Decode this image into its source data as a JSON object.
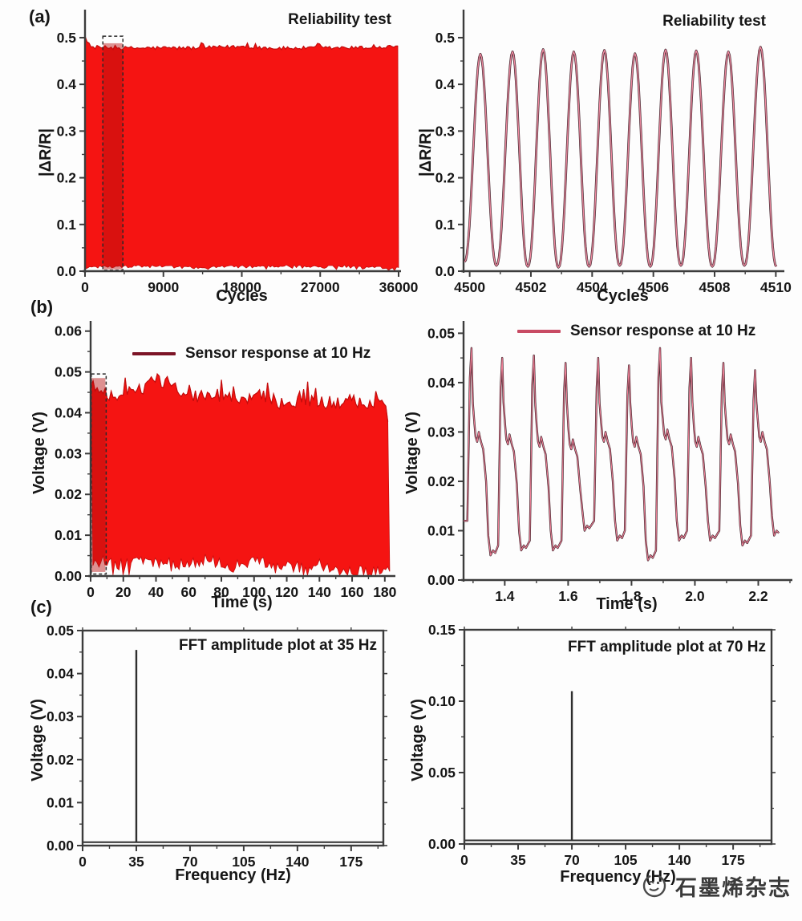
{
  "panels": {
    "a": {
      "label": "(a)"
    },
    "b": {
      "label": "(b)"
    },
    "c": {
      "label": "(c)"
    }
  },
  "colors": {
    "band_red": "#f51412",
    "band_edge_red": "#c40d0d",
    "stripe_red": "#b80d0d",
    "maroon_legend": "#7c1426",
    "crimson_legend": "#c84b64",
    "wave_dark": "#4a2a33",
    "wave_pink": "#ef8aa0",
    "pulse_dark": "#3c2128",
    "pulse_pink": "#ee7f96",
    "axis": "#3c3c3c",
    "spike": "#2f2f2f",
    "text": "#161616"
  },
  "watermark": {
    "logo": "graphene-magazine-logo",
    "text": "石墨烯杂志"
  },
  "chart_data": [
    {
      "id": "a-left",
      "type": "area",
      "title": "Reliability test",
      "xlabel": "Cycles",
      "ylabel": "|ΔR/R|",
      "xlim": [
        0,
        36000
      ],
      "ylim": [
        0,
        0.56
      ],
      "xticks": [
        0,
        9000,
        18000,
        27000,
        36000
      ],
      "xtick_labels": [
        "0",
        "9000",
        "18000",
        "27000",
        "36000"
      ],
      "minor_xticks": [
        4500,
        13500,
        22500,
        31500
      ],
      "yticks": [
        0,
        0.1,
        0.2,
        0.3,
        0.4,
        0.5
      ],
      "ytick_labels": [
        "0.0",
        "0.1",
        "0.2",
        "0.3",
        "0.4",
        "0.5"
      ],
      "minor_yticks": [
        0.05,
        0.15,
        0.25,
        0.35,
        0.45
      ],
      "band": {
        "x_start": 0,
        "x_end": 36000,
        "envelope_top": [
          [
            0,
            0.5
          ],
          [
            250,
            0.49
          ],
          [
            700,
            0.48
          ],
          [
            4000,
            0.4775
          ],
          [
            9000,
            0.478
          ],
          [
            13000,
            0.4778
          ],
          [
            18000,
            0.481
          ],
          [
            22000,
            0.4772
          ],
          [
            27000,
            0.4778
          ],
          [
            31000,
            0.4782
          ],
          [
            34000,
            0.479
          ],
          [
            36000,
            0.483
          ]
        ],
        "envelope_bottom": [
          [
            0,
            0.003
          ],
          [
            500,
            0.009
          ],
          [
            5000,
            0.01
          ],
          [
            9000,
            0.0105
          ],
          [
            12000,
            0.008
          ],
          [
            18000,
            0.0095
          ],
          [
            24000,
            0.0105
          ],
          [
            27000,
            0.009
          ],
          [
            30000,
            0.0105
          ],
          [
            33000,
            0.008
          ],
          [
            36000,
            0.006
          ]
        ],
        "top_noise": 0.004,
        "bottom_noise": 0.003
      },
      "highlight_stripe": {
        "x0": 2100,
        "x1": 4300,
        "y0": 0.004,
        "y1": 0.488
      },
      "zoom_box": {
        "x0": 2050,
        "x1": 4350,
        "y0": 0.002,
        "y1": 0.503
      },
      "grid": false,
      "legend": null
    },
    {
      "id": "a-right",
      "type": "line",
      "title": "Reliability test",
      "xlabel": "Cycles",
      "ylabel": "|ΔR/R|",
      "xlim": [
        4499.8,
        4510.2
      ],
      "ylim": [
        0,
        0.56
      ],
      "xticks": [
        4500,
        4502,
        4504,
        4506,
        4508,
        4510
      ],
      "xtick_labels": [
        "4500",
        "4502",
        "4504",
        "4506",
        "4508",
        "4510"
      ],
      "minor_xticks": [
        4501,
        4503,
        4505,
        4507,
        4509
      ],
      "yticks": [
        0,
        0.1,
        0.2,
        0.3,
        0.4,
        0.5
      ],
      "ytick_labels": [
        "0.0",
        "0.1",
        "0.2",
        "0.3",
        "0.4",
        "0.5"
      ],
      "minor_yticks": [
        0.05,
        0.15,
        0.25,
        0.35,
        0.45
      ],
      "wave": {
        "period_cycles": 1.0,
        "peaks": [
          {
            "x": 4500.35,
            "y": 0.465
          },
          {
            "x": 4501.4,
            "y": 0.47
          },
          {
            "x": 4502.4,
            "y": 0.475
          },
          {
            "x": 4503.4,
            "y": 0.47
          },
          {
            "x": 4504.4,
            "y": 0.473
          },
          {
            "x": 4505.4,
            "y": 0.466
          },
          {
            "x": 4506.4,
            "y": 0.474
          },
          {
            "x": 4507.4,
            "y": 0.472
          },
          {
            "x": 4508.45,
            "y": 0.47
          },
          {
            "x": 4509.5,
            "y": 0.48
          }
        ],
        "troughs": [
          0.02,
          0.012,
          0.01,
          0.008,
          0.01,
          0.012,
          0.01,
          0.012,
          0.01,
          0.012,
          0.01
        ]
      },
      "grid": false,
      "legend": null
    },
    {
      "id": "b-left",
      "type": "area",
      "title": null,
      "legend": "Sensor response at 10 Hz",
      "xlabel": "Time (s)",
      "ylabel": "Voltage (V)",
      "xlim": [
        0,
        185
      ],
      "ylim": [
        0,
        0.0625
      ],
      "xticks": [
        0,
        20,
        40,
        60,
        80,
        100,
        120,
        140,
        160,
        180
      ],
      "xtick_labels": [
        "0",
        "20",
        "40",
        "60",
        "80",
        "100",
        "120",
        "140",
        "160",
        "180"
      ],
      "minor_xticks": [
        10,
        30,
        50,
        70,
        90,
        110,
        130,
        150,
        170
      ],
      "yticks": [
        0,
        0.01,
        0.02,
        0.03,
        0.04,
        0.05,
        0.06
      ],
      "ytick_labels": [
        "0.00",
        "0.01",
        "0.02",
        "0.03",
        "0.04",
        "0.05",
        "0.06"
      ],
      "minor_yticks": [
        0.005,
        0.015,
        0.025,
        0.035,
        0.045,
        0.055
      ],
      "band": {
        "x_start": 0.3,
        "x_end": 183,
        "envelope_top": [
          [
            0.3,
            0.048
          ],
          [
            3,
            0.0465
          ],
          [
            8,
            0.0445
          ],
          [
            15,
            0.0445
          ],
          [
            25,
            0.045
          ],
          [
            33,
            0.0455
          ],
          [
            38,
            0.0495
          ],
          [
            42,
            0.0475
          ],
          [
            48,
            0.048
          ],
          [
            55,
            0.046
          ],
          [
            60,
            0.044
          ],
          [
            70,
            0.044
          ],
          [
            80,
            0.0445
          ],
          [
            90,
            0.043
          ],
          [
            100,
            0.0445
          ],
          [
            110,
            0.043
          ],
          [
            120,
            0.0425
          ],
          [
            130,
            0.0425
          ],
          [
            140,
            0.043
          ],
          [
            150,
            0.042
          ],
          [
            160,
            0.043
          ],
          [
            170,
            0.0415
          ],
          [
            178,
            0.042
          ],
          [
            183,
            0.038
          ]
        ],
        "envelope_bottom": [
          [
            0.3,
            0.004
          ],
          [
            10,
            0.0035
          ],
          [
            20,
            0.0028
          ],
          [
            30,
            0.004
          ],
          [
            40,
            0.0035
          ],
          [
            50,
            0.003
          ],
          [
            60,
            0.0028
          ],
          [
            70,
            0.004
          ],
          [
            80,
            0.003
          ],
          [
            90,
            0.0028
          ],
          [
            100,
            0.0038
          ],
          [
            110,
            0.0028
          ],
          [
            120,
            0.003
          ],
          [
            130,
            0.0022
          ],
          [
            140,
            0.0028
          ],
          [
            150,
            0.0018
          ],
          [
            160,
            0.0008
          ],
          [
            170,
            0.0015
          ],
          [
            178,
            0.001
          ],
          [
            183,
            0.0025
          ]
        ],
        "top_noise": 0.0018,
        "bottom_noise": 0.0015
      },
      "highlight_stripe": {
        "x0": 0.5,
        "x1": 9,
        "y0": 0.001,
        "y1": 0.0485
      },
      "zoom_box": {
        "x0": 0.4,
        "x1": 9.5,
        "y0": 0.0005,
        "y1": 0.0495
      },
      "grid": false
    },
    {
      "id": "b-right",
      "type": "line",
      "title": null,
      "legend": "Sensor response at 10 Hz",
      "xlabel": "Time (s)",
      "ylabel": "Voltage (V)",
      "xlim": [
        1.27,
        2.3
      ],
      "ylim": [
        0,
        0.0525
      ],
      "xticks": [
        1.4,
        1.6,
        1.8,
        2.0,
        2.2
      ],
      "xtick_labels": [
        "1.4",
        "1.6",
        "1.8",
        "2.0",
        "2.2"
      ],
      "minor_xticks": [
        1.3,
        1.5,
        1.7,
        1.9,
        2.1,
        2.3
      ],
      "yticks": [
        0,
        0.01,
        0.02,
        0.03,
        0.04,
        0.05
      ],
      "ytick_labels": [
        "0.00",
        "0.01",
        "0.02",
        "0.03",
        "0.04",
        "0.05"
      ],
      "minor_yticks": [
        0.005,
        0.015,
        0.025,
        0.035,
        0.045
      ],
      "cycles": [
        {
          "t_peak": 1.295,
          "peak": 0.047,
          "plateau": 0.029,
          "trough": 0.005
        },
        {
          "t_peak": 1.392,
          "peak": 0.045,
          "plateau": 0.0285,
          "trough": 0.006
        },
        {
          "t_peak": 1.492,
          "peak": 0.0455,
          "plateau": 0.028,
          "trough": 0.006
        },
        {
          "t_peak": 1.592,
          "peak": 0.044,
          "plateau": 0.0275,
          "trough": 0.01
        },
        {
          "t_peak": 1.695,
          "peak": 0.045,
          "plateau": 0.029,
          "trough": 0.008
        },
        {
          "t_peak": 1.792,
          "peak": 0.0435,
          "plateau": 0.028,
          "trough": 0.004
        },
        {
          "t_peak": 1.89,
          "peak": 0.047,
          "plateau": 0.0295,
          "trough": 0.008
        },
        {
          "t_peak": 1.988,
          "peak": 0.045,
          "plateau": 0.028,
          "trough": 0.008
        },
        {
          "t_peak": 2.09,
          "peak": 0.044,
          "plateau": 0.0285,
          "trough": 0.007
        },
        {
          "t_peak": 2.19,
          "peak": 0.0425,
          "plateau": 0.029,
          "trough": 0.009
        }
      ],
      "grid": false
    },
    {
      "id": "c-left",
      "type": "bar",
      "title": "FFT amplitude plot at 35 Hz",
      "xlabel": "Frequency (Hz)",
      "ylabel": "Voltage (V)",
      "xlim": [
        0,
        196
      ],
      "ylim": [
        0,
        0.05
      ],
      "xticks": [
        0,
        35,
        70,
        105,
        140,
        175
      ],
      "xtick_labels": [
        "0",
        "35",
        "70",
        "105",
        "140",
        "175"
      ],
      "minor_xticks": [
        17.5,
        52.5,
        87.5,
        122.5,
        157.5,
        192.5
      ],
      "yticks": [
        0,
        0.01,
        0.02,
        0.03,
        0.04,
        0.05
      ],
      "ytick_labels": [
        "0.00",
        "0.01",
        "0.02",
        "0.03",
        "0.04",
        "0.05"
      ],
      "minor_yticks": [
        0.005,
        0.015,
        0.025,
        0.035,
        0.045
      ],
      "spike": {
        "frequency": 35,
        "amplitude": 0.0455
      },
      "baseline": 0.0008,
      "frame": true,
      "grid": false,
      "legend": null
    },
    {
      "id": "c-right",
      "type": "bar",
      "title": "FFT amplitude plot at 70 Hz",
      "xlabel": "Frequency (Hz)",
      "ylabel": "Voltage (V)",
      "xlim": [
        0,
        200
      ],
      "ylim": [
        0,
        0.15
      ],
      "xticks": [
        0,
        35,
        70,
        105,
        140,
        175
      ],
      "xtick_labels": [
        "0",
        "35",
        "70",
        "105",
        "140",
        "175"
      ],
      "minor_xticks": [
        17.5,
        52.5,
        87.5,
        122.5,
        157.5,
        192.5
      ],
      "yticks": [
        0,
        0.05,
        0.1,
        0.15
      ],
      "ytick_labels": [
        "0.00",
        "0.05",
        "0.10",
        "0.15"
      ],
      "minor_yticks": [
        0.025,
        0.075,
        0.125
      ],
      "spike": {
        "frequency": 70,
        "amplitude": 0.107
      },
      "baseline": 0.0025,
      "frame": true,
      "grid": false,
      "legend": null
    }
  ]
}
